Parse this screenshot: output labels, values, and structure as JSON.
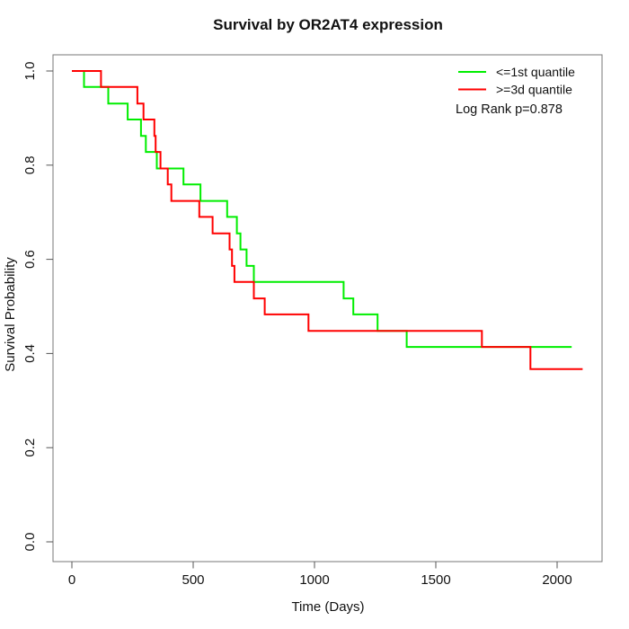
{
  "title": "Survival by OR2AT4 expression",
  "legend": {
    "stat_text": "Log Rank p=0.878"
  },
  "chart_data": {
    "type": "line",
    "subtype": "kaplan-meier-step",
    "title": "Survival by OR2AT4 expression",
    "xlabel": "Time (Days)",
    "ylabel": "Survival Probability",
    "xlim": [
      0,
      2100
    ],
    "ylim": [
      0.0,
      1.0
    ],
    "grid": false,
    "legend_position": "top-right",
    "x_ticks": {
      "values": [
        0,
        500,
        1000,
        1500,
        2000
      ],
      "labels": [
        "0",
        "500",
        "1000",
        "1500",
        "2000"
      ]
    },
    "y_ticks": {
      "values": [
        0.0,
        0.2,
        0.4,
        0.6,
        0.8,
        1.0
      ],
      "labels": [
        "0.0",
        "0.2",
        "0.4",
        "0.6",
        "0.8",
        "1.0"
      ]
    },
    "series": [
      {
        "id": "green",
        "name": "<=1st quantile",
        "color": "#00EE00",
        "points": [
          [
            0,
            1.0
          ],
          [
            50,
            0.966
          ],
          [
            150,
            0.931
          ],
          [
            230,
            0.897
          ],
          [
            285,
            0.862
          ],
          [
            305,
            0.828
          ],
          [
            350,
            0.793
          ],
          [
            460,
            0.759
          ],
          [
            530,
            0.724
          ],
          [
            640,
            0.69
          ],
          [
            680,
            0.655
          ],
          [
            695,
            0.621
          ],
          [
            720,
            0.586
          ],
          [
            750,
            0.552
          ],
          [
            1120,
            0.517
          ],
          [
            1160,
            0.483
          ],
          [
            1260,
            0.448
          ],
          [
            1380,
            0.414
          ]
        ],
        "end_time": 2060
      },
      {
        "id": "red",
        "name": ">=3d quantile",
        "color": "#FF0000",
        "points": [
          [
            0,
            1.0
          ],
          [
            120,
            0.966
          ],
          [
            270,
            0.931
          ],
          [
            295,
            0.897
          ],
          [
            340,
            0.862
          ],
          [
            345,
            0.828
          ],
          [
            365,
            0.793
          ],
          [
            395,
            0.759
          ],
          [
            410,
            0.724
          ],
          [
            525,
            0.69
          ],
          [
            580,
            0.655
          ],
          [
            650,
            0.621
          ],
          [
            660,
            0.586
          ],
          [
            670,
            0.552
          ],
          [
            750,
            0.517
          ],
          [
            795,
            0.483
          ],
          [
            975,
            0.448
          ],
          [
            1690,
            0.414
          ],
          [
            1890,
            0.367
          ]
        ],
        "end_time": 2105
      }
    ]
  }
}
